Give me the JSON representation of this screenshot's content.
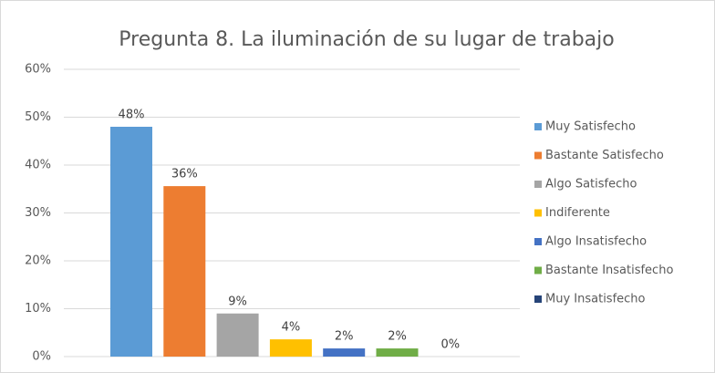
{
  "chart_data": {
    "type": "bar",
    "title": "Pregunta 8. La iluminación de su lugar de trabajo",
    "ylim": [
      0,
      60
    ],
    "yticks": [
      {
        "value": 0,
        "label": "0%"
      },
      {
        "value": 10,
        "label": "10%"
      },
      {
        "value": 20,
        "label": "20%"
      },
      {
        "value": 30,
        "label": "30%"
      },
      {
        "value": 40,
        "label": "40%"
      },
      {
        "value": 50,
        "label": "50%"
      },
      {
        "value": 60,
        "label": "60%"
      }
    ],
    "grid": true,
    "legend": "right",
    "series": [
      {
        "name": "Muy Satisfecho",
        "color": "#5b9bd5",
        "values": [
          48
        ],
        "value_labels": [
          "48%"
        ]
      },
      {
        "name": "Bastante Satisfecho",
        "color": "#ed7d31",
        "values": [
          35.6
        ],
        "value_labels": [
          "36%"
        ]
      },
      {
        "name": "Algo Satisfecho",
        "color": "#a5a5a5",
        "values": [
          9
        ],
        "value_labels": [
          "9%"
        ]
      },
      {
        "name": "Indiferente",
        "color": "#ffc000",
        "values": [
          3.6
        ],
        "value_labels": [
          "4%"
        ]
      },
      {
        "name": "Algo Insatisfecho",
        "color": "#4472c4",
        "values": [
          1.7
        ],
        "value_labels": [
          "2%"
        ]
      },
      {
        "name": "Bastante Insatisfecho",
        "color": "#70ad47",
        "values": [
          1.7
        ],
        "value_labels": [
          "2%"
        ]
      },
      {
        "name": "Muy Insatisfecho",
        "color": "#264478",
        "values": [
          0
        ],
        "value_labels": [
          "0%"
        ]
      }
    ]
  }
}
